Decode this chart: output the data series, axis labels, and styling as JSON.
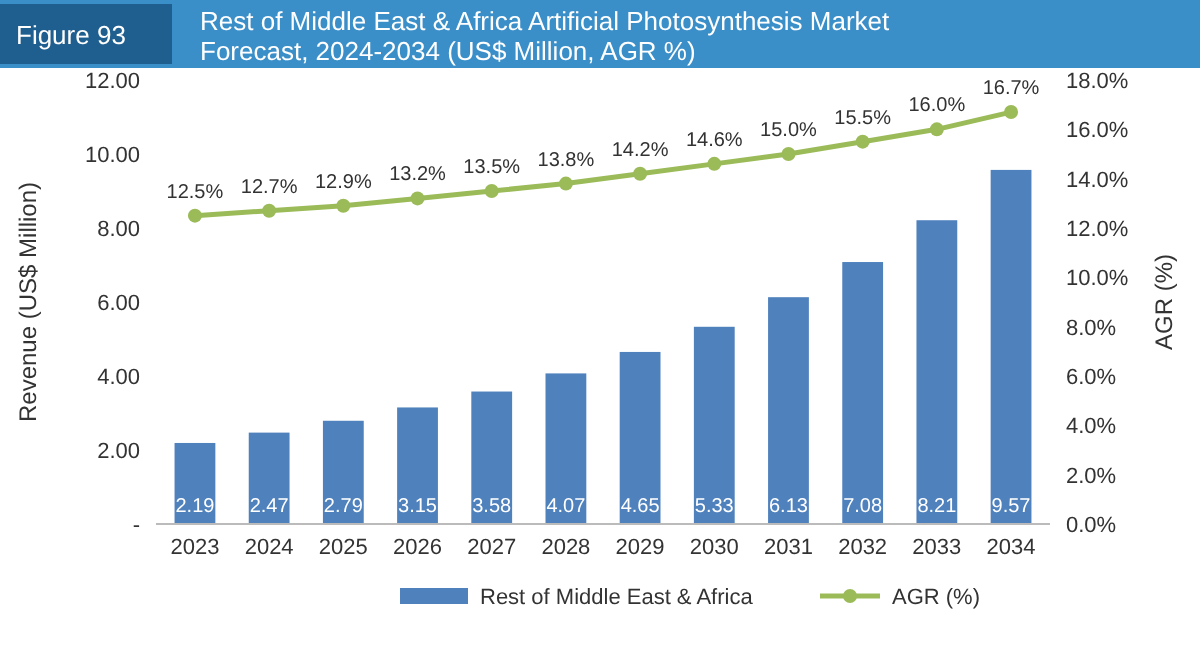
{
  "chart_data": {
    "type": "bar",
    "title": "Rest of Middle East & Africa Artificial Photosynthesis Market Forecast, 2024-2034 (US$ Million, AGR %)",
    "annotations": [
      "Figure 93"
    ],
    "ylabel": "Revenue (US$ Million)",
    "y2label": "AGR (%)",
    "categories": [
      "2023",
      "2024",
      "2025",
      "2026",
      "2027",
      "2028",
      "2029",
      "2030",
      "2031",
      "2032",
      "2033",
      "2034"
    ],
    "series": [
      {
        "name": "Rest of Middle East & Africa",
        "color": "#4f81bd",
        "values": [
          2.19,
          2.47,
          2.79,
          3.15,
          3.58,
          4.07,
          4.65,
          5.33,
          6.13,
          7.08,
          8.21,
          9.57
        ],
        "value_labels": [
          "2.19",
          "2.47",
          "2.79",
          "3.15",
          "3.58",
          "4.07",
          "4.65",
          "5.33",
          "6.13",
          "7.08",
          "8.21",
          "9.57"
        ]
      },
      {
        "name": "AGR (%)",
        "type": "line",
        "axis": "y2",
        "color": "#9bbb59",
        "marker": "circle",
        "values": [
          12.5,
          12.7,
          12.9,
          13.2,
          13.5,
          13.8,
          14.2,
          14.6,
          15.0,
          15.5,
          16.0,
          16.7
        ],
        "value_labels": [
          "12.5%",
          "12.7%",
          "12.9%",
          "13.2%",
          "13.5%",
          "13.8%",
          "14.2%",
          "14.6%",
          "15.0%",
          "15.5%",
          "16.0%",
          "16.7%"
        ]
      }
    ],
    "ylim": [
      0,
      12
    ],
    "yticks": [
      {
        "value": 0,
        "label": "-"
      },
      {
        "value": 2,
        "label": "2.00"
      },
      {
        "value": 4,
        "label": "4.00"
      },
      {
        "value": 6,
        "label": "6.00"
      },
      {
        "value": 8,
        "label": "8.00"
      },
      {
        "value": 10,
        "label": "10.00"
      },
      {
        "value": 12,
        "label": "12.00"
      }
    ],
    "y2lim": [
      0,
      18
    ],
    "y2ticks": [
      {
        "value": 0,
        "label": "0.0%"
      },
      {
        "value": 2,
        "label": "2.0%"
      },
      {
        "value": 4,
        "label": "4.0%"
      },
      {
        "value": 6,
        "label": "6.0%"
      },
      {
        "value": 8,
        "label": "8.0%"
      },
      {
        "value": 10,
        "label": "10.0%"
      },
      {
        "value": 12,
        "label": "12.0%"
      },
      {
        "value": 14,
        "label": "14.0%"
      },
      {
        "value": 16,
        "label": "16.0%"
      },
      {
        "value": 18,
        "label": "18.0%"
      }
    ],
    "legend": "bottom",
    "grid": false
  }
}
